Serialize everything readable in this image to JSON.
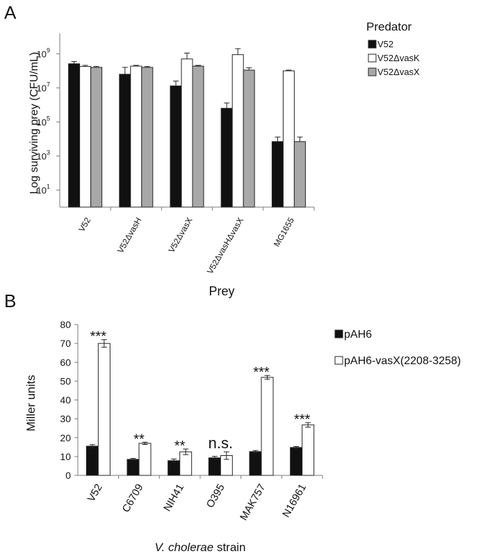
{
  "colors": {
    "black_bar": "#111111",
    "white_bar": "#ffffff",
    "gray_bar": "#a8a8a8",
    "axis": "#7a7a7a"
  },
  "chart_data": [
    {
      "panel": "A",
      "type": "bar",
      "scale": "log10",
      "ylabel": "Log surviving prey (CFU/mL)",
      "xlabel": "Prey",
      "legend_title": "Predator",
      "legend_position": "top-right",
      "y_ticks": [
        {
          "exp": 1,
          "label": "10",
          "sup": "1"
        },
        {
          "exp": 3,
          "label": "10",
          "sup": "3"
        },
        {
          "exp": 5,
          "label": "10",
          "sup": "5"
        },
        {
          "exp": 7,
          "label": "10",
          "sup": "7"
        },
        {
          "exp": 9,
          "label": "10",
          "sup": "9"
        }
      ],
      "ylim_log10": [
        0,
        10.2
      ],
      "categories": [
        "V52",
        "V52ΔvasH",
        "V52ΔvasX",
        "V52ΔvasHΔvasX",
        "MG1655"
      ],
      "series": [
        {
          "name": "V52",
          "color_key": "black_bar",
          "values": [
            260000000.0,
            63000000.0,
            13000000.0,
            630000.0,
            7000.0
          ],
          "errors_upper": [
            350000000.0,
            160000000.0,
            25000000.0,
            1300000.0,
            13000.0
          ]
        },
        {
          "name": "V52ΔvasK",
          "color_key": "white_bar",
          "values": [
            180000000.0,
            190000000.0,
            500000000.0,
            890000000.0,
            100000000.0
          ],
          "errors_upper": [
            210000000.0,
            210000000.0,
            1100000000.0,
            2000000000.0,
            110000000.0
          ]
        },
        {
          "name": "V52ΔvasX",
          "color_key": "gray_bar",
          "values": [
            160000000.0,
            160000000.0,
            190000000.0,
            110000000.0,
            7000.0
          ],
          "errors_upper": [
            180000000.0,
            180000000.0,
            210000000.0,
            150000000.0,
            13000.0
          ]
        }
      ]
    },
    {
      "panel": "B",
      "type": "bar",
      "ylabel": "Miller units",
      "xlabel_italic": "V. cholerae",
      "xlabel_rest": " strain",
      "ylim": [
        0,
        80
      ],
      "yticks": [
        0,
        10,
        20,
        30,
        40,
        50,
        60,
        70,
        80
      ],
      "categories": [
        "V52",
        "C6709",
        "NIH41",
        "O395",
        "MAK757",
        "N16961"
      ],
      "series": [
        {
          "name": "pAH6",
          "color_key": "black_bar",
          "values": [
            15.5,
            8.5,
            7.8,
            9.3,
            12.6,
            14.8
          ],
          "errors": [
            0.8,
            0.5,
            0.9,
            0.8,
            0.6,
            0.5
          ]
        },
        {
          "name": "pAH6-vasX(2208-3258)",
          "color_key": "white_bar",
          "values": [
            70,
            17,
            12.5,
            10.5,
            52,
            26.8
          ],
          "errors": [
            2.0,
            0.6,
            1.5,
            2.0,
            1.0,
            1.2
          ]
        }
      ],
      "significance": [
        "***",
        "**",
        "**",
        "n.s.",
        "***",
        "***"
      ]
    }
  ],
  "panel_labels": [
    "A",
    "B"
  ]
}
